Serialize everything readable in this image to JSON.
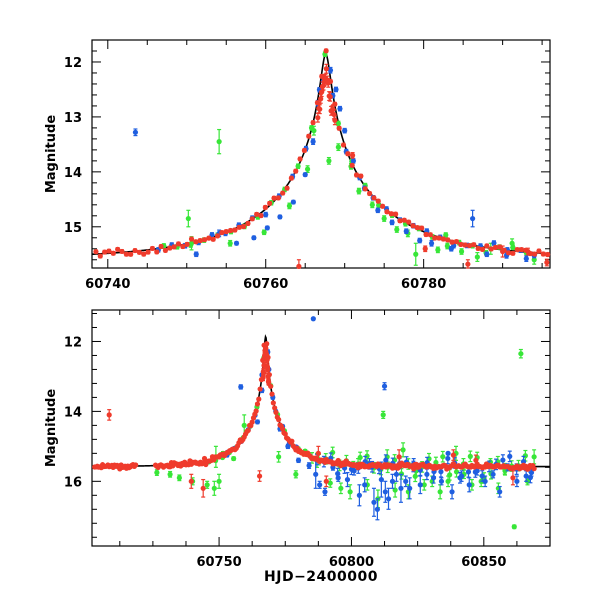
{
  "figure": {
    "xlabel": "HJD−2400000",
    "colors": {
      "blue": "#1f5fe0",
      "red": "#ef3b2c",
      "green": "#38e638",
      "model": "#000000"
    }
  },
  "chart_data": [
    {
      "type": "scatter",
      "ylabel": "Magnitude",
      "xlabel": "",
      "xlim": [
        60738,
        60796
      ],
      "ylim": [
        15.75,
        11.6
      ],
      "y_inverted": true,
      "xticks": [
        60740,
        60760,
        60780
      ],
      "yticks": [
        12,
        13,
        14,
        15
      ],
      "grid": false,
      "model": {
        "t0": 60767.6,
        "base": 15.58,
        "amplitude": 3.72,
        "tE": 16.0,
        "u0": 0.034,
        "name": ""
      },
      "series": [
        {
          "name": "",
          "color": "#1f5fe0",
          "points": [
            [
              60743.5,
              13.28,
              0.06
            ],
            [
              60751.2,
              15.5,
              0.04
            ],
            [
              60754.1,
              15.12,
              0.06
            ],
            [
              60756.3,
              15.3,
              0.03
            ],
            [
              60758.5,
              15.2,
              0.03
            ],
            [
              60760.2,
              15.02,
              0.03
            ],
            [
              60761.8,
              14.82,
              0.03
            ],
            [
              60763.5,
              14.55,
              0.03
            ],
            [
              60765.0,
              14.05,
              0.03
            ],
            [
              60766.0,
              13.45,
              0.05
            ],
            [
              60766.6,
              12.75,
              0.05
            ],
            [
              60767.3,
              12.35,
              0.06
            ],
            [
              60768.2,
              12.15,
              0.05
            ],
            [
              60768.9,
              12.5,
              0.04
            ],
            [
              60769.4,
              12.85,
              0.04
            ],
            [
              60770.0,
              13.25,
              0.04
            ],
            [
              60771.1,
              13.8,
              0.04
            ],
            [
              60772.5,
              14.3,
              0.04
            ],
            [
              60774.2,
              14.7,
              0.04
            ],
            [
              60776.0,
              14.92,
              0.04
            ],
            [
              60777.8,
              15.08,
              0.04
            ],
            [
              60779.5,
              15.25,
              0.04
            ],
            [
              60781.0,
              15.3,
              0.05
            ],
            [
              60783.5,
              15.4,
              0.04
            ],
            [
              60786.2,
              14.85,
              0.15
            ],
            [
              60788.0,
              15.5,
              0.04
            ],
            [
              60790.5,
              15.52,
              0.05
            ],
            [
              60793.0,
              15.58,
              0.05
            ]
          ]
        },
        {
          "name": "",
          "color": "#38e638",
          "points": [
            [
              60750.2,
              14.85,
              0.15
            ],
            [
              60750.6,
              15.3,
              0.12
            ],
            [
              60754.1,
              13.45,
              0.22
            ],
            [
              60755.5,
              15.3,
              0.05
            ],
            [
              60759.8,
              15.1,
              0.04
            ],
            [
              60763.0,
              14.62,
              0.05
            ],
            [
              60765.3,
              13.95,
              0.06
            ],
            [
              60766.1,
              13.25,
              0.08
            ],
            [
              60768.0,
              13.8,
              0.06
            ],
            [
              60769.2,
              13.55,
              0.06
            ],
            [
              60770.8,
              13.9,
              0.05
            ],
            [
              60771.8,
              14.35,
              0.05
            ],
            [
              60773.5,
              14.6,
              0.05
            ],
            [
              60775.0,
              14.85,
              0.05
            ],
            [
              60776.6,
              15.05,
              0.05
            ],
            [
              60778.0,
              15.12,
              0.06
            ],
            [
              60779.0,
              15.5,
              0.2
            ],
            [
              60781.8,
              15.42,
              0.05
            ],
            [
              60783.0,
              15.35,
              0.05
            ],
            [
              60784.8,
              15.45,
              0.05
            ],
            [
              60786.8,
              15.55,
              0.08
            ],
            [
              60788.5,
              15.4,
              0.1
            ],
            [
              60791.2,
              15.3,
              0.08
            ],
            [
              60794.0,
              15.6,
              0.08
            ]
          ]
        },
        {
          "name": "",
          "color": "#ef3b2c",
          "sampled_from_model": {
            "x_from": 60738.5,
            "x_to": 60795.8,
            "step": 0.55,
            "scatter": 0.04
          },
          "points": [
            [
              60764.2,
              15.72,
              0.12
            ],
            [
              60771.0,
              13.7,
              0.05
            ],
            [
              60780.2,
              15.4,
              0.05
            ],
            [
              60785.6,
              15.68,
              0.08
            ],
            [
              60790.0,
              15.45,
              0.1
            ],
            [
              60793.2,
              15.45,
              0.06
            ],
            [
              60795.6,
              15.65,
              0.06
            ]
          ]
        }
      ]
    },
    {
      "type": "scatter",
      "ylabel": "Magnitude",
      "xlabel": "HJD−2400000",
      "xlim": [
        60702,
        60875
      ],
      "ylim": [
        17.85,
        11.1
      ],
      "y_inverted": true,
      "xticks": [
        60750,
        60800,
        60850
      ],
      "yticks": [
        12,
        14,
        16
      ],
      "grid": false,
      "model": {
        "t0": 60767.6,
        "base": 15.58,
        "amplitude": 3.72,
        "tE": 16.0,
        "u0": 0.034,
        "name": ""
      },
      "series": [
        {
          "name": "",
          "color": "#1f5fe0",
          "points": [
            [
              60785.6,
              11.35,
              0.03
            ],
            [
              60758.2,
              13.3,
              0.06
            ],
            [
              60812.5,
              13.28,
              0.1
            ],
            [
              60753.0,
              15.25,
              0.05
            ],
            [
              60764.5,
              14.3,
              0.05
            ],
            [
              60766.2,
              13.4,
              0.06
            ],
            [
              60768.4,
              12.3,
              0.06
            ],
            [
              60770.3,
              13.6,
              0.05
            ],
            [
              60773.0,
              14.5,
              0.06
            ],
            [
              60776.0,
              15.0,
              0.06
            ],
            [
              60780.0,
              15.4,
              0.06
            ],
            [
              60784.0,
              15.55,
              0.08
            ],
            [
              60786.5,
              15.8,
              0.4
            ],
            [
              60788.0,
              16.1,
              0.1
            ],
            [
              60790.0,
              16.3,
              0.1
            ],
            [
              60793.0,
              15.6,
              0.08
            ],
            [
              60795.0,
              15.9,
              0.1
            ],
            [
              60798.5,
              15.95,
              0.2
            ],
            [
              60801.0,
              15.7,
              0.12
            ],
            [
              60803.0,
              16.4,
              0.3
            ],
            [
              60805.0,
              16.1,
              0.2
            ],
            [
              60806.8,
              15.5,
              0.15
            ],
            [
              60808.5,
              16.6,
              0.4
            ],
            [
              60809.8,
              16.8,
              0.3
            ],
            [
              60811.3,
              15.95,
              0.5
            ],
            [
              60812.8,
              16.3,
              0.3
            ],
            [
              60814.0,
              16.5,
              0.3
            ],
            [
              60815.5,
              16.0,
              0.2
            ],
            [
              60817.0,
              15.8,
              0.2
            ],
            [
              60818.7,
              16.2,
              0.4
            ],
            [
              60820.5,
              16.0,
              0.15
            ],
            [
              60822.0,
              16.2,
              0.3
            ],
            [
              60823.5,
              15.5,
              0.15
            ],
            [
              60826.0,
              16.1,
              0.25
            ],
            [
              60828.5,
              15.8,
              0.15
            ],
            [
              60831.0,
              15.9,
              0.15
            ],
            [
              60834.0,
              16.0,
              0.1
            ],
            [
              60836.5,
              15.2,
              0.03
            ],
            [
              60838.0,
              16.3,
              0.2
            ],
            [
              60841.0,
              15.9,
              0.15
            ],
            [
              60844.5,
              16.1,
              0.2
            ],
            [
              60847.5,
              15.7,
              0.12
            ],
            [
              60850.5,
              16.0,
              0.15
            ],
            [
              60853.5,
              15.8,
              0.1
            ],
            [
              60856.0,
              16.3,
              0.15
            ],
            [
              60859.0,
              15.6,
              0.1
            ],
            [
              60862.5,
              16.0,
              0.15
            ],
            [
              60866.0,
              15.85,
              0.15
            ],
            [
              60868.0,
              15.75,
              0.1
            ]
          ]
        },
        {
          "name": "",
          "color": "#38e638",
          "points": [
            [
              60726.5,
              15.75,
              0.08
            ],
            [
              60731.5,
              15.8,
              0.08
            ],
            [
              60735.0,
              15.9,
              0.08
            ],
            [
              60740.0,
              16.0,
              0.1
            ],
            [
              60745.5,
              16.1,
              0.1
            ],
            [
              60748.2,
              16.2,
              0.2
            ],
            [
              60748.8,
              15.3,
              0.3
            ],
            [
              60750.0,
              16.0,
              0.2
            ],
            [
              60751.5,
              15.2,
              0.05
            ],
            [
              60755.5,
              15.35,
              0.05
            ],
            [
              60759.5,
              14.4,
              0.3
            ],
            [
              60772.5,
              15.3,
              0.15
            ],
            [
              60779.0,
              15.8,
              0.1
            ],
            [
              60787.0,
              15.4,
              0.2
            ],
            [
              60792.0,
              16.05,
              0.12
            ],
            [
              60796.0,
              16.2,
              0.15
            ],
            [
              60799.5,
              16.3,
              0.2
            ],
            [
              60802.5,
              15.5,
              0.15
            ],
            [
              60806.0,
              16.1,
              0.15
            ],
            [
              60810.0,
              16.5,
              0.25
            ],
            [
              60812.0,
              14.1,
              0.1
            ],
            [
              60813.5,
              15.3,
              0.2
            ],
            [
              60816.5,
              16.25,
              0.2
            ],
            [
              60819.5,
              15.1,
              0.2
            ],
            [
              60821.5,
              16.3,
              0.2
            ],
            [
              60824.5,
              15.7,
              0.15
            ],
            [
              60827.5,
              16.1,
              0.15
            ],
            [
              60830.5,
              16.0,
              0.15
            ],
            [
              60833.5,
              16.3,
              0.2
            ],
            [
              60836.5,
              16.0,
              0.15
            ],
            [
              60839.5,
              15.2,
              0.2
            ],
            [
              60842.5,
              15.8,
              0.12
            ],
            [
              60845.5,
              16.1,
              0.15
            ],
            [
              60849.0,
              16.0,
              0.15
            ],
            [
              60852.5,
              15.45,
              0.1
            ],
            [
              60855.5,
              16.2,
              0.15
            ],
            [
              60858.0,
              15.7,
              0.12
            ],
            [
              60861.5,
              17.3,
              0.05
            ],
            [
              60864.0,
              12.35,
              0.12
            ],
            [
              60866.5,
              16.0,
              0.1
            ],
            [
              60869.0,
              15.3,
              0.2
            ]
          ]
        },
        {
          "name": "",
          "color": "#ef3b2c",
          "sampled_from_model": {
            "x_from": 60703,
            "x_to": 60869,
            "step": 0.5,
            "scatter": 0.05,
            "gap": [
              60718.5,
              60726
            ]
          },
          "points": [
            [
              60708.5,
              14.1,
              0.15
            ],
            [
              60739.5,
              16.0,
              0.2
            ],
            [
              60744.0,
              16.2,
              0.25
            ],
            [
              60765.3,
              15.85,
              0.15
            ],
            [
              60787.5,
              15.2,
              0.2
            ],
            [
              60790.5,
              16.0,
              0.15
            ],
            [
              60818.0,
              15.3,
              0.2
            ],
            [
              60838.5,
              15.25,
              0.15
            ],
            [
              60847.0,
              15.4,
              0.15
            ],
            [
              60861.0,
              15.9,
              0.2
            ]
          ]
        }
      ]
    }
  ]
}
